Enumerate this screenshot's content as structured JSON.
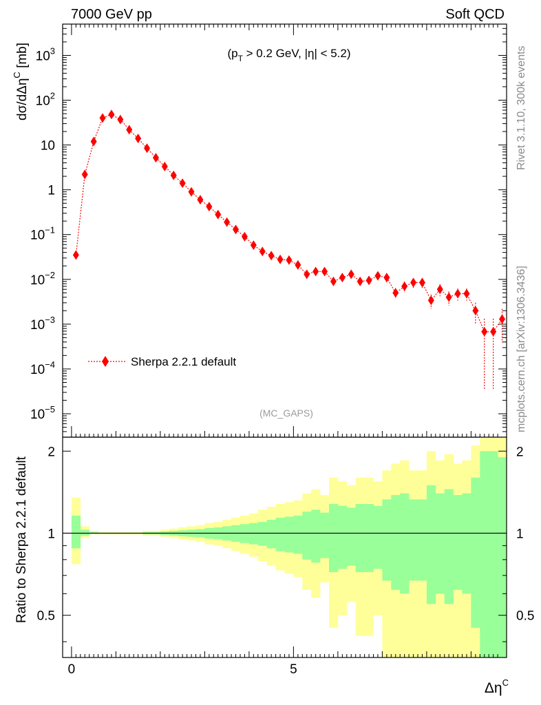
{
  "header": {
    "left": "7000 GeV pp",
    "right": "Soft QCD"
  },
  "side_labels": {
    "top": "Rivet 3.1.10,  300k events",
    "bottom": "mcplots.cern.ch [arXiv:1306.3436]"
  },
  "colors": {
    "series": "#ff0000",
    "band_inner": "#99ff99",
    "band_outer": "#ffff99",
    "axis": "#000000",
    "side_text": "#8a8a8a"
  },
  "chart_data": [
    {
      "type": "scatter",
      "title": "",
      "cut_text": {
        "prefix": "(p",
        "sub": "T",
        "suffix": " > 0.2 GeV, |η| < 5.2)"
      },
      "watermark": "(MC_GAPS)",
      "ylabel": {
        "main": "dσ/dΔη",
        "sup": "C",
        "unit": " [mb]"
      },
      "xlabel": {
        "main": "Δη",
        "sup": "C"
      },
      "yscale": "log",
      "xlim": [
        -0.2,
        9.8
      ],
      "ylim": [
        3e-06,
        5000
      ],
      "x_ticks": [
        0,
        5
      ],
      "y_ticks": [
        {
          "v": 1e-05,
          "base": "10",
          "exp": "−5"
        },
        {
          "v": 0.0001,
          "base": "10",
          "exp": "−4"
        },
        {
          "v": 0.001,
          "base": "10",
          "exp": "−3"
        },
        {
          "v": 0.01,
          "base": "10",
          "exp": "−2"
        },
        {
          "v": 0.1,
          "base": "10",
          "exp": "−1"
        },
        {
          "v": 1,
          "base": "1",
          "exp": ""
        },
        {
          "v": 10,
          "base": "10",
          "exp": ""
        },
        {
          "v": 100,
          "base": "10",
          "exp": "2"
        },
        {
          "v": 1000,
          "base": "10",
          "exp": "3"
        }
      ],
      "legend": {
        "placement": "bottom-left",
        "label": "Sherpa 2.2.1 default"
      },
      "series": [
        {
          "name": "Sherpa 2.2.1 default",
          "marker": "diamond",
          "linestyle": "dotted",
          "x": [
            0.1,
            0.3,
            0.5,
            0.7,
            0.9,
            1.1,
            1.3,
            1.5,
            1.7,
            1.9,
            2.1,
            2.3,
            2.5,
            2.7,
            2.9,
            3.1,
            3.3,
            3.5,
            3.7,
            3.9,
            4.1,
            4.3,
            4.5,
            4.7,
            4.9,
            5.1,
            5.3,
            5.5,
            5.7,
            5.9,
            6.1,
            6.3,
            6.5,
            6.7,
            6.9,
            7.1,
            7.3,
            7.5,
            7.7,
            7.9,
            8.1,
            8.3,
            8.5,
            8.7,
            8.9,
            9.1,
            9.3,
            9.5,
            9.7
          ],
          "y": [
            0.035,
            2.2,
            12,
            40,
            48,
            37,
            22,
            14,
            8.5,
            5.2,
            3.3,
            2.1,
            1.4,
            0.9,
            0.6,
            0.42,
            0.28,
            0.19,
            0.13,
            0.09,
            0.058,
            0.042,
            0.034,
            0.028,
            0.027,
            0.021,
            0.013,
            0.015,
            0.015,
            0.009,
            0.011,
            0.013,
            0.009,
            0.0095,
            0.012,
            0.011,
            0.005,
            0.007,
            0.0085,
            0.0085,
            0.0034,
            0.006,
            0.004,
            0.0048,
            0.0048,
            0.002,
            0.00068,
            0.00068,
            0.0013
          ],
          "err_rel": [
            0.08,
            0.03,
            0.02,
            0.01,
            0.01,
            0.01,
            0.01,
            0.01,
            0.01,
            0.01,
            0.01,
            0.02,
            0.02,
            0.02,
            0.02,
            0.03,
            0.03,
            0.04,
            0.04,
            0.05,
            0.06,
            0.07,
            0.08,
            0.09,
            0.1,
            0.12,
            0.15,
            0.15,
            0.15,
            0.18,
            0.18,
            0.17,
            0.2,
            0.2,
            0.18,
            0.22,
            0.28,
            0.28,
            0.25,
            0.25,
            0.35,
            0.3,
            0.35,
            0.3,
            0.3,
            0.5,
            0.95,
            0.95,
            0.7
          ]
        }
      ]
    },
    {
      "type": "area",
      "title": "",
      "ylabel": "Ratio to Sherpa 2.2.1 default",
      "xlim": [
        -0.2,
        9.8
      ],
      "ylim": [
        0.35,
        2.25
      ],
      "y_ticks": [
        0.5,
        1,
        2
      ],
      "x_edges": [
        0,
        0.2,
        0.4,
        0.6,
        0.8,
        1.0,
        1.2,
        1.4,
        1.6,
        1.8,
        2.0,
        2.2,
        2.4,
        2.6,
        2.8,
        3.0,
        3.2,
        3.4,
        3.6,
        3.8,
        4.0,
        4.2,
        4.4,
        4.6,
        4.8,
        5.0,
        5.2,
        5.4,
        5.6,
        5.8,
        6.0,
        6.2,
        6.4,
        6.6,
        6.8,
        7.0,
        7.2,
        7.4,
        7.6,
        7.8,
        8.0,
        8.2,
        8.4,
        8.6,
        8.8,
        9.0,
        9.2,
        9.4,
        9.6,
        9.8
      ],
      "series": [
        {
          "name": "",
          "color": "#ffff99",
          "upper": [
            1.35,
            1.06,
            1.02,
            1.01,
            1.01,
            1.01,
            1.01,
            1.01,
            1.02,
            1.02,
            1.03,
            1.04,
            1.05,
            1.06,
            1.07,
            1.09,
            1.1,
            1.12,
            1.14,
            1.16,
            1.18,
            1.22,
            1.25,
            1.28,
            1.3,
            1.32,
            1.4,
            1.45,
            1.38,
            1.6,
            1.55,
            1.5,
            1.6,
            1.6,
            1.55,
            1.7,
            1.8,
            1.85,
            1.7,
            1.7,
            2.0,
            1.85,
            1.95,
            1.8,
            1.85,
            2.1,
            2.5,
            2.5,
            2.4
          ],
          "lower": [
            0.77,
            0.96,
            0.99,
            0.99,
            0.99,
            0.99,
            0.99,
            0.99,
            0.98,
            0.98,
            0.97,
            0.96,
            0.95,
            0.94,
            0.93,
            0.91,
            0.9,
            0.88,
            0.86,
            0.84,
            0.82,
            0.79,
            0.76,
            0.73,
            0.71,
            0.69,
            0.62,
            0.58,
            0.66,
            0.45,
            0.5,
            0.56,
            0.42,
            0.42,
            0.5,
            0.35,
            0.3,
            0.3,
            0.33,
            0.33,
            0.3,
            0.3,
            0.3,
            0.3,
            0.3,
            0.3,
            0.3,
            0.3,
            0.3
          ]
        },
        {
          "name": "",
          "color": "#99ff99",
          "upper": [
            1.16,
            1.03,
            1.01,
            1.005,
            1.005,
            1.005,
            1.005,
            1.005,
            1.01,
            1.01,
            1.015,
            1.02,
            1.025,
            1.03,
            1.035,
            1.045,
            1.05,
            1.06,
            1.07,
            1.08,
            1.09,
            1.1,
            1.12,
            1.14,
            1.15,
            1.16,
            1.2,
            1.22,
            1.19,
            1.28,
            1.26,
            1.24,
            1.28,
            1.28,
            1.26,
            1.33,
            1.38,
            1.4,
            1.33,
            1.33,
            1.5,
            1.4,
            1.45,
            1.38,
            1.4,
            1.6,
            2.0,
            2.0,
            1.9
          ],
          "lower": [
            0.88,
            0.98,
            0.995,
            0.995,
            0.995,
            0.995,
            0.995,
            0.995,
            0.99,
            0.99,
            0.985,
            0.98,
            0.975,
            0.97,
            0.965,
            0.955,
            0.95,
            0.94,
            0.93,
            0.92,
            0.91,
            0.9,
            0.88,
            0.86,
            0.85,
            0.84,
            0.8,
            0.78,
            0.81,
            0.72,
            0.74,
            0.76,
            0.72,
            0.72,
            0.74,
            0.67,
            0.62,
            0.6,
            0.67,
            0.67,
            0.55,
            0.6,
            0.55,
            0.62,
            0.6,
            0.45,
            0.3,
            0.3,
            0.3
          ]
        }
      ]
    }
  ]
}
